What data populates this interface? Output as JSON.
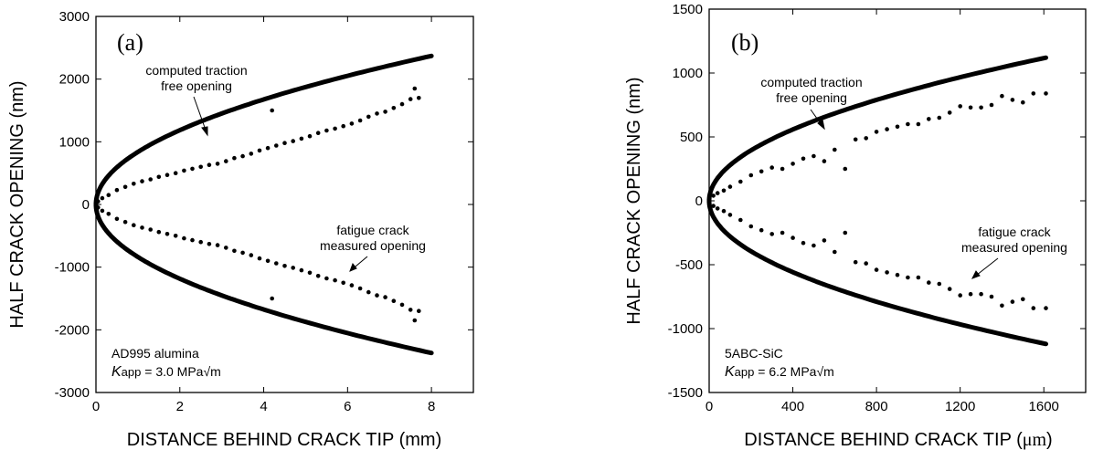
{
  "chart_data": [
    {
      "type": "scatter",
      "panel_label": "(a)",
      "xlabel": "DISTANCE BEHIND CRACK TIP (mm)",
      "ylabel": "HALF CRACK OPENING (nm)",
      "xlim": [
        0,
        9
      ],
      "ylim": [
        -3000,
        3000
      ],
      "xticks": [
        0,
        2,
        4,
        6,
        8
      ],
      "yticks": [
        -3000,
        -2000,
        -1000,
        0,
        1000,
        2000,
        3000
      ],
      "material": "AD995 alumina",
      "k_symbol": "K",
      "k_sub": "app",
      "k_value": " = 3.0 MPa√m",
      "annotations": [
        {
          "lines": [
            "computed traction",
            "free opening"
          ]
        },
        {
          "lines": [
            "fatigue crack",
            "measured opening"
          ]
        }
      ],
      "traction_free_curve": {
        "x_max": 8,
        "y_at_x_max": 2370,
        "exponent": 0.5
      },
      "measured_opening_points": [
        [
          0.05,
          50
        ],
        [
          0.15,
          100
        ],
        [
          0.3,
          150
        ],
        [
          0.5,
          230
        ],
        [
          0.7,
          280
        ],
        [
          0.9,
          330
        ],
        [
          1.1,
          370
        ],
        [
          1.3,
          400
        ],
        [
          1.5,
          440
        ],
        [
          1.7,
          470
        ],
        [
          1.9,
          500
        ],
        [
          2.1,
          540
        ],
        [
          2.3,
          570
        ],
        [
          2.5,
          600
        ],
        [
          2.7,
          630
        ],
        [
          2.9,
          650
        ],
        [
          3.1,
          690
        ],
        [
          3.3,
          740
        ],
        [
          3.5,
          770
        ],
        [
          3.7,
          810
        ],
        [
          3.9,
          860
        ],
        [
          4.1,
          900
        ],
        [
          4.2,
          1500
        ],
        [
          4.3,
          940
        ],
        [
          4.5,
          980
        ],
        [
          4.7,
          1010
        ],
        [
          4.9,
          1050
        ],
        [
          5.1,
          1090
        ],
        [
          5.3,
          1140
        ],
        [
          5.5,
          1180
        ],
        [
          5.7,
          1210
        ],
        [
          5.9,
          1250
        ],
        [
          6.1,
          1290
        ],
        [
          6.3,
          1340
        ],
        [
          6.5,
          1400
        ],
        [
          6.7,
          1450
        ],
        [
          6.9,
          1480
        ],
        [
          7.1,
          1540
        ],
        [
          7.3,
          1600
        ],
        [
          7.5,
          1680
        ],
        [
          7.6,
          1850
        ],
        [
          7.7,
          1700
        ]
      ]
    },
    {
      "type": "scatter",
      "panel_label": "(b)",
      "xlabel_prefix": "DISTANCE BEHIND CRACK TIP (",
      "xlabel_unit": "μm",
      "xlabel_suffix": ")",
      "ylabel": "HALF CRACK OPENING (nm)",
      "xlim": [
        0,
        1800
      ],
      "ylim": [
        -1500,
        1500
      ],
      "xticks": [
        0,
        400,
        800,
        1200,
        1600
      ],
      "yticks": [
        -1500,
        -1000,
        -500,
        0,
        500,
        1000,
        1500
      ],
      "material": "5ABC-SiC",
      "k_symbol": "K",
      "k_sub": "app",
      "k_value": " = 6.2 MPa√m",
      "annotations": [
        {
          "lines": [
            "computed traction",
            "free opening"
          ]
        },
        {
          "lines": [
            "fatigue crack",
            "measured opening"
          ]
        }
      ],
      "traction_free_curve": {
        "x_max": 1610,
        "y_at_x_max": 1120,
        "exponent": 0.5
      },
      "measured_opening_points": [
        [
          20,
          40
        ],
        [
          40,
          60
        ],
        [
          70,
          80
        ],
        [
          100,
          110
        ],
        [
          150,
          150
        ],
        [
          200,
          200
        ],
        [
          250,
          230
        ],
        [
          300,
          260
        ],
        [
          350,
          250
        ],
        [
          400,
          290
        ],
        [
          450,
          330
        ],
        [
          500,
          350
        ],
        [
          550,
          310
        ],
        [
          600,
          400
        ],
        [
          650,
          250
        ],
        [
          700,
          480
        ],
        [
          750,
          490
        ],
        [
          800,
          540
        ],
        [
          850,
          560
        ],
        [
          900,
          580
        ],
        [
          950,
          600
        ],
        [
          1000,
          600
        ],
        [
          1050,
          640
        ],
        [
          1100,
          650
        ],
        [
          1150,
          690
        ],
        [
          1200,
          740
        ],
        [
          1250,
          730
        ],
        [
          1300,
          730
        ],
        [
          1350,
          750
        ],
        [
          1400,
          820
        ],
        [
          1450,
          790
        ],
        [
          1500,
          770
        ],
        [
          1550,
          840
        ],
        [
          1610,
          840
        ]
      ]
    }
  ]
}
